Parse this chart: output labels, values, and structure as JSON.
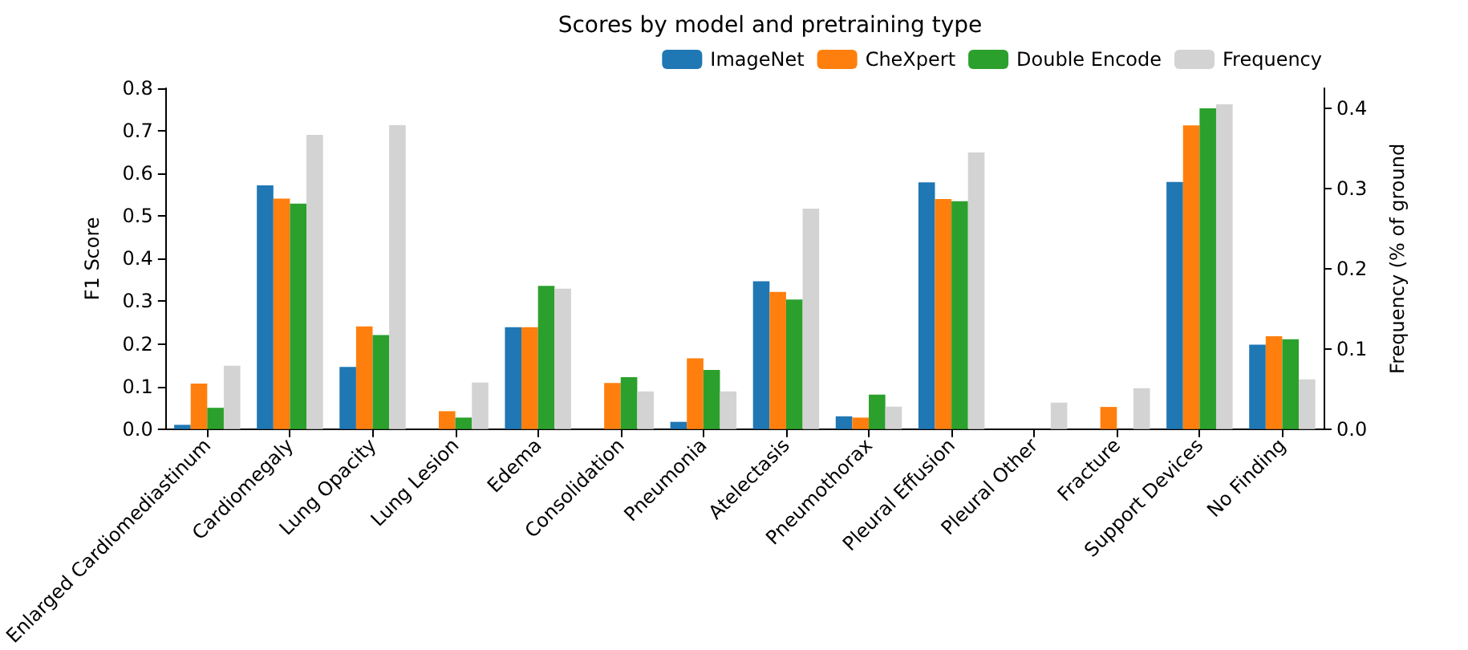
{
  "chart_data": {
    "type": "bar",
    "title": "Scores by model and pretraining type",
    "ylabel": "F1 Score",
    "y2label": "Frequency (% of ground",
    "categories": [
      "Enlarged Cardiomediastinum",
      "Cardiomegaly",
      "Lung Opacity",
      "Lung Lesion",
      "Edema",
      "Consolidation",
      "Pneumonia",
      "Atelectasis",
      "Pneumothorax",
      "Pleural Effusion",
      "Pleural Other",
      "Fracture",
      "Support Devices",
      "No Finding"
    ],
    "series": [
      {
        "name": "ImageNet",
        "color": "#1f77b4",
        "values": [
          0.01,
          0.572,
          0.146,
          0,
          0.239,
          0,
          0.017,
          0.347,
          0.03,
          0.579,
          0,
          0,
          0.58,
          0.198
        ]
      },
      {
        "name": "CheXpert",
        "color": "#ff7f0e",
        "values": [
          0.107,
          0.541,
          0.241,
          0.042,
          0.239,
          0.108,
          0.166,
          0.322,
          0.027,
          0.54,
          0,
          0.052,
          0.713,
          0.218
        ]
      },
      {
        "name": "Double Encode",
        "color": "#2ca02c",
        "values": [
          0.05,
          0.529,
          0.221,
          0.027,
          0.336,
          0.122,
          0.139,
          0.304,
          0.081,
          0.535,
          0,
          0,
          0.753,
          0.211
        ]
      },
      {
        "name": "Frequency",
        "color": "#d3d3d3",
        "axis": "y2",
        "values": [
          0.079,
          0.367,
          0.379,
          0.058,
          0.175,
          0.047,
          0.047,
          0.275,
          0.028,
          0.345,
          0.033,
          0.051,
          0.405,
          0.062
        ]
      }
    ],
    "ylim": [
      0,
      0.8
    ],
    "yticks": [
      {
        "value": 0,
        "label": "0.0"
      },
      {
        "value": 0.1,
        "label": "0.1"
      },
      {
        "value": 0.2,
        "label": "0.2"
      },
      {
        "value": 0.3,
        "label": "0.3"
      },
      {
        "value": 0.4,
        "label": "0.4"
      },
      {
        "value": 0.5,
        "label": "0.5"
      },
      {
        "value": 0.6,
        "label": "0.6"
      },
      {
        "value": 0.7,
        "label": "0.7"
      },
      {
        "value": 0.8,
        "label": "0.8"
      }
    ],
    "y2lim": [
      0,
      0.425
    ],
    "y2ticks": [
      {
        "value": 0,
        "label": "0.0"
      },
      {
        "value": 0.1,
        "label": "0.1"
      },
      {
        "value": 0.2,
        "label": "0.2"
      },
      {
        "value": 0.3,
        "label": "0.3"
      },
      {
        "value": 0.4,
        "label": "0.4"
      }
    ],
    "grid": false,
    "legend": "top right"
  }
}
